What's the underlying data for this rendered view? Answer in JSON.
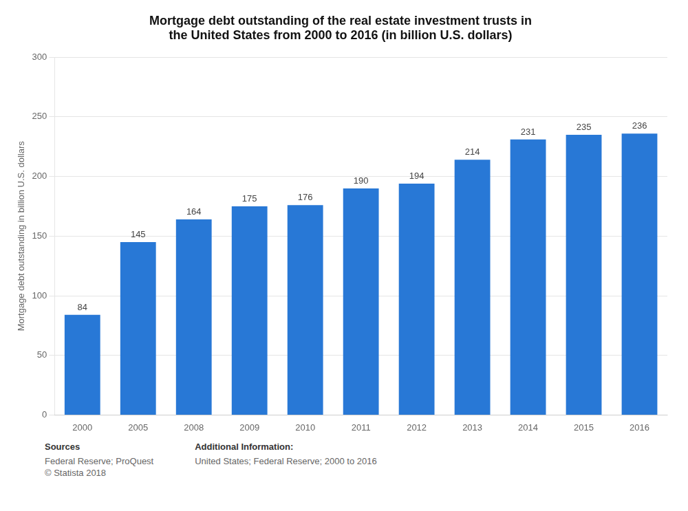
{
  "chart_data": {
    "type": "bar",
    "title": "Mortgage debt outstanding of the real estate investment trusts in\nthe United States from 2000 to 2016 (in billion U.S. dollars)",
    "y_label": "Mortgage debt outstanding in billion U.S. dollars",
    "categories": [
      "2000",
      "2005",
      "2008",
      "2009",
      "2010",
      "2011",
      "2012",
      "2013",
      "2014",
      "2015",
      "2016"
    ],
    "values": [
      84,
      145,
      164,
      175,
      176,
      190,
      194,
      214,
      231,
      235,
      236
    ],
    "color": "#2878d6",
    "ylim": [
      0,
      300
    ],
    "yticks": [
      0,
      50,
      100,
      150,
      200,
      250,
      300
    ],
    "grid": true,
    "data_labels": true,
    "annotations": [
      {
        "title": "Sources",
        "text": "Federal Reserve; ProQuest\n© Statista 2018"
      },
      {
        "title": "Additional Information:",
        "text": "United States; Federal Reserve; 2000 to 2016"
      }
    ]
  }
}
